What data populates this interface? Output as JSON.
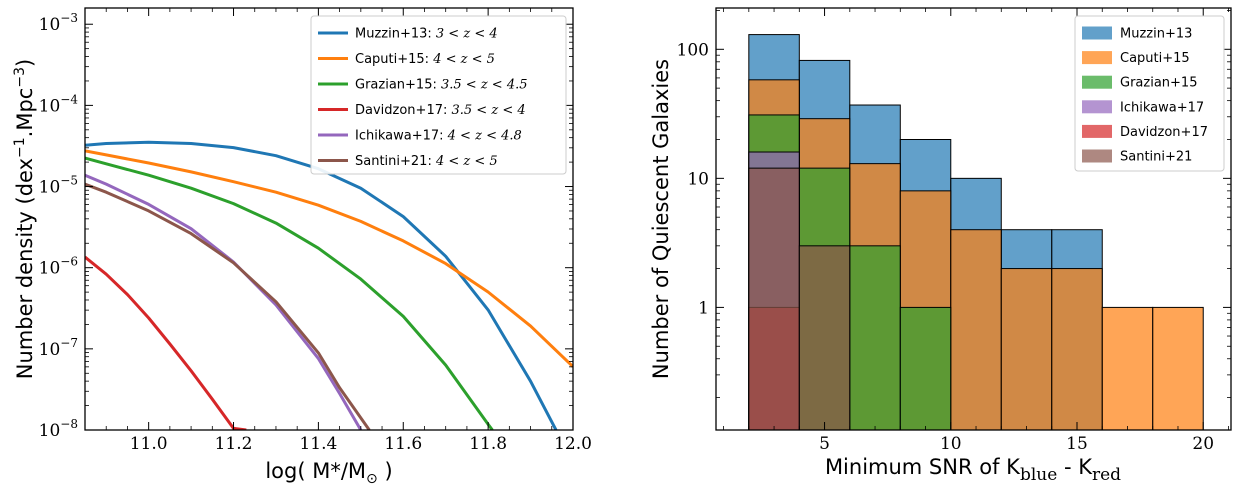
{
  "chart_data": [
    {
      "type": "line",
      "xlabel_prefix": "log( M*/M",
      "xlabel_sub": "⊙",
      "xlabel_suffix": " )",
      "ylabel_prefix": "Number density (dex",
      "ylabel_sup1": "−1",
      "ylabel_mid": ".Mpc",
      "ylabel_sup2": "−3",
      "ylabel_suffix": ")",
      "xlim": [
        10.85,
        12.0
      ],
      "ylim_log10": [
        -8,
        -2.8
      ],
      "ylog": true,
      "xticks": [
        "11.0",
        "11.2",
        "11.4",
        "11.6",
        "11.8",
        "12.0"
      ],
      "xtick_values": [
        11.0,
        11.2,
        11.4,
        11.6,
        11.8,
        12.0
      ],
      "yticks": [
        {
          "base": "10",
          "exp": "−3",
          "value": -3
        },
        {
          "base": "10",
          "exp": "−4",
          "value": -4
        },
        {
          "base": "10",
          "exp": "−5",
          "value": -5
        },
        {
          "base": "10",
          "exp": "−6",
          "value": -6
        },
        {
          "base": "10",
          "exp": "−7",
          "value": -7
        },
        {
          "base": "10",
          "exp": "−8",
          "value": -8
        }
      ],
      "legend_position": "top-right",
      "series": [
        {
          "name": "Muzzin+13:",
          "range": "3 < z < 4",
          "color": "#1f77b4",
          "x": [
            10.85,
            10.9,
            11.0,
            11.1,
            11.2,
            11.3,
            11.4,
            11.5,
            11.6,
            11.7,
            11.8,
            11.9,
            11.96
          ],
          "log10_y": [
            -4.49,
            -4.47,
            -4.455,
            -4.47,
            -4.52,
            -4.62,
            -4.78,
            -5.02,
            -5.37,
            -5.86,
            -6.52,
            -7.4,
            -8.0
          ]
        },
        {
          "name": "Caputi+15:",
          "range": "4 < z < 5",
          "color": "#ff7f0e",
          "x": [
            10.85,
            10.9,
            11.0,
            11.1,
            11.2,
            11.3,
            11.4,
            11.5,
            11.6,
            11.7,
            11.8,
            11.9,
            12.0
          ],
          "log10_y": [
            -4.56,
            -4.61,
            -4.71,
            -4.82,
            -4.94,
            -5.07,
            -5.23,
            -5.43,
            -5.67,
            -5.95,
            -6.3,
            -6.72,
            -7.22
          ]
        },
        {
          "name": "Grazian+15:",
          "range": "3.5 < z < 4.5",
          "color": "#2ca02c",
          "x": [
            10.85,
            10.9,
            11.0,
            11.1,
            11.2,
            11.3,
            11.4,
            11.5,
            11.6,
            11.7,
            11.8,
            11.81
          ],
          "log10_y": [
            -4.65,
            -4.72,
            -4.86,
            -5.02,
            -5.21,
            -5.45,
            -5.76,
            -6.14,
            -6.6,
            -7.2,
            -7.93,
            -8.0
          ]
        },
        {
          "name": "Davidzon+17:",
          "range": "3.5 < z < 4",
          "color": "#d62728",
          "x": [
            10.85,
            10.9,
            10.95,
            11.0,
            11.05,
            11.1,
            11.15,
            11.2,
            11.23
          ],
          "log10_y": [
            -5.87,
            -6.08,
            -6.33,
            -6.62,
            -6.94,
            -7.27,
            -7.62,
            -7.98,
            -8.0
          ]
        },
        {
          "name": "Ichikawa+17:",
          "range": "4 < z < 4.8",
          "color": "#9467bd",
          "x": [
            10.85,
            10.9,
            11.0,
            11.1,
            11.2,
            11.3,
            11.4,
            11.45,
            11.5
          ],
          "log10_y": [
            -4.86,
            -4.97,
            -5.22,
            -5.52,
            -5.93,
            -6.46,
            -7.12,
            -7.55,
            -8.0
          ]
        },
        {
          "name": "Santini+21:",
          "range": "4 < z < 5",
          "color": "#8c564b",
          "x": [
            10.85,
            10.9,
            11.0,
            11.1,
            11.2,
            11.3,
            11.4,
            11.45,
            11.52
          ],
          "log10_y": [
            -4.97,
            -5.07,
            -5.3,
            -5.58,
            -5.94,
            -6.42,
            -7.05,
            -7.48,
            -8.0
          ]
        }
      ]
    },
    {
      "type": "bar",
      "ylabel": "Number of Quiescent Galaxies",
      "xlabel_prefix": "Minimum SNR of K",
      "xlabel_sub1": "blue",
      "xlabel_mid": " - K",
      "xlabel_sub2": "red",
      "xlim": [
        0.7,
        21.1
      ],
      "ylim_log10": [
        -0.95,
        2.32
      ],
      "ylog": true,
      "xticks": [
        "5",
        "10",
        "15",
        "20"
      ],
      "xtick_values": [
        5,
        10,
        15,
        20
      ],
      "yticks": [
        "1",
        "10",
        "100"
      ],
      "ytick_values": [
        1,
        10,
        100
      ],
      "bin_edges": [
        2,
        4,
        6,
        8,
        10,
        12,
        14,
        16,
        18,
        20
      ],
      "legend_position": "top-right",
      "series": [
        {
          "name": "Muzzin+13",
          "color": "#1f77b4",
          "values": [
            130,
            82,
            37,
            20,
            10,
            4,
            4,
            0,
            0
          ]
        },
        {
          "name": "Caputi+15",
          "color": "#ff7f0e",
          "values": [
            58,
            29,
            13,
            8,
            4,
            2,
            2,
            1,
            1
          ]
        },
        {
          "name": "Grazian+15",
          "color": "#2ca02c",
          "values": [
            31,
            12,
            3,
            1,
            0,
            0,
            0,
            0,
            0
          ]
        },
        {
          "name": "Ichikawa+17",
          "color": "#9467bd",
          "values": [
            16,
            0,
            0,
            0,
            0,
            0,
            0,
            0,
            0
          ]
        },
        {
          "name": "Davidzon+17",
          "color": "#d62728",
          "values": [
            1,
            0,
            0,
            0,
            0,
            0,
            0,
            0,
            0
          ]
        },
        {
          "name": "Santini+21",
          "color": "#8c564b",
          "values": [
            12,
            3,
            0,
            0,
            0,
            0,
            0,
            0,
            0
          ]
        }
      ]
    }
  ]
}
